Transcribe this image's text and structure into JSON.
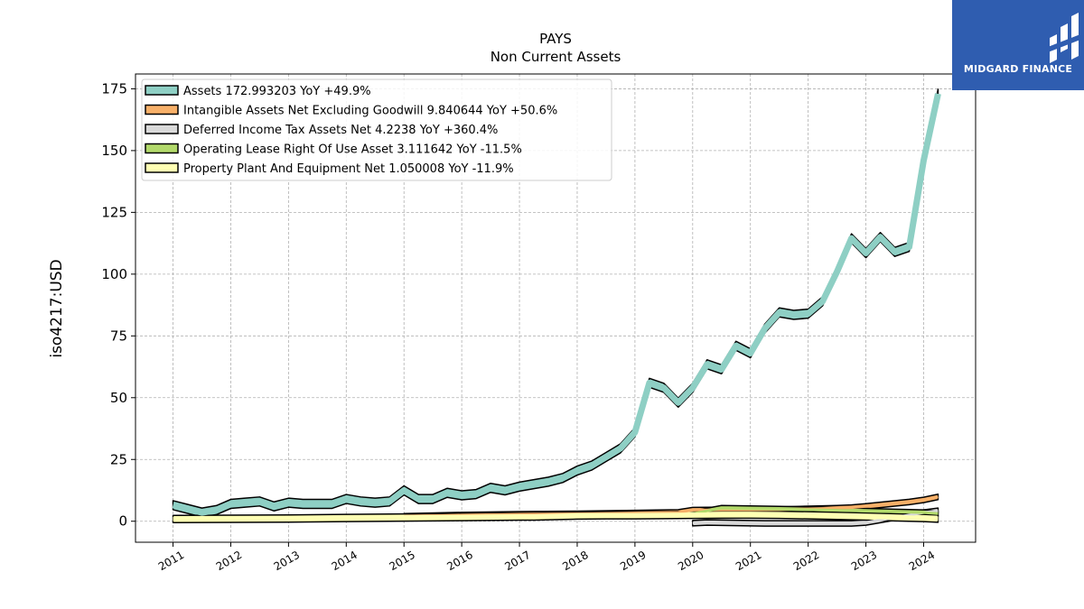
{
  "chart_data": {
    "type": "line",
    "title": "PAYS",
    "subtitle": "Non Current  Assets",
    "ylabel": "iso4217:USD",
    "xlabel": "",
    "x_ticks": [
      "2011",
      "2012",
      "2013",
      "2014",
      "2015",
      "2016",
      "2017",
      "2018",
      "2019",
      "2020",
      "2021",
      "2022",
      "2023",
      "2024"
    ],
    "y_ticks": [
      "0",
      "25",
      "50",
      "75",
      "100",
      "125",
      "150",
      "175"
    ],
    "ylim": [
      -8.5,
      181
    ],
    "xlim": [
      2010.35,
      2024.9
    ],
    "grid": true,
    "legend_position": "top-left",
    "series": [
      {
        "name": "Assets",
        "legend": "Assets  172.993203 YoY +49.9%",
        "color": "#8ecfc4",
        "x": [
          2011.0,
          2011.25,
          2011.5,
          2011.75,
          2012.0,
          2012.25,
          2012.5,
          2012.75,
          2013.0,
          2013.25,
          2013.5,
          2013.75,
          2014.0,
          2014.25,
          2014.5,
          2014.75,
          2015.0,
          2015.25,
          2015.5,
          2015.75,
          2016.0,
          2016.25,
          2016.5,
          2016.75,
          2017.0,
          2017.25,
          2017.5,
          2017.75,
          2018.0,
          2018.25,
          2018.5,
          2018.75,
          2019.0,
          2019.25,
          2019.5,
          2019.75,
          2020.0,
          2020.25,
          2020.5,
          2020.75,
          2021.0,
          2021.25,
          2021.5,
          2021.75,
          2022.0,
          2022.25,
          2022.5,
          2022.75,
          2023.0,
          2023.25,
          2023.5,
          2023.75,
          2024.0,
          2024.25
        ],
        "y": [
          6.5,
          5,
          3.5,
          4.5,
          7,
          7.5,
          8,
          6,
          7.5,
          7,
          7,
          7,
          9,
          8,
          7.5,
          8,
          12.5,
          9,
          9,
          11.5,
          10.5,
          11,
          13.5,
          12.5,
          14,
          15,
          16,
          17.5,
          20.5,
          22.5,
          26,
          29.5,
          36,
          56,
          54,
          48,
          54,
          63.5,
          61.5,
          71,
          68,
          78,
          84.5,
          83.5,
          84,
          89,
          101,
          114.5,
          108.5,
          115,
          109,
          111,
          146,
          173
        ]
      },
      {
        "name": "Intangible Assets Net Excluding Goodwill",
        "legend": "Intangible Assets Net Excluding Goodwill  9.840644 YoY +50.6%",
        "color": "#f7b069",
        "x": [
          2015.0,
          2016.0,
          2017.0,
          2018.0,
          2019.0,
          2019.75,
          2020.0,
          2020.5,
          2021.0,
          2021.5,
          2022.0,
          2022.5,
          2022.75,
          2023.0,
          2023.25,
          2023.5,
          2023.75,
          2024.0,
          2024.25
        ],
        "y": [
          2.0,
          2.5,
          2.8,
          3.0,
          3.3,
          3.6,
          4.5,
          4.6,
          4.6,
          4.7,
          5.0,
          5.3,
          5.5,
          6.0,
          6.6,
          7.2,
          7.8,
          8.6,
          9.84
        ]
      },
      {
        "name": "Deferred Income Tax Assets Net",
        "legend": "Deferred Income Tax Assets Net  4.2238 YoY +360.4%",
        "color": "#d9d9d9",
        "x": [
          2020.0,
          2020.25,
          2020.5,
          2020.75,
          2021.0,
          2021.25,
          2021.5,
          2021.75,
          2022.0,
          2022.25,
          2022.5,
          2022.75,
          2023.0,
          2023.25,
          2023.5,
          2023.75,
          2024.0,
          2024.25
        ],
        "y": [
          -0.8,
          -0.5,
          -0.6,
          -0.7,
          -0.8,
          -0.9,
          -0.9,
          -0.9,
          -0.9,
          -0.9,
          -0.9,
          -0.9,
          -0.5,
          0.5,
          1.5,
          2.5,
          3.5,
          4.22
        ]
      },
      {
        "name": "Operating Lease Right Of Use Asset",
        "legend": "Operating Lease Right Of Use Asset  3.111642 YoY -11.5%",
        "color": "#b2d96b",
        "x": [
          2020.0,
          2020.25,
          2020.5,
          2020.75,
          2021.0,
          2021.5,
          2022.0,
          2022.5,
          2023.0,
          2023.5,
          2024.0,
          2024.25
        ],
        "y": [
          3.0,
          4.2,
          5.3,
          5.2,
          5.1,
          4.9,
          4.7,
          4.4,
          4.1,
          3.8,
          3.5,
          3.11
        ]
      },
      {
        "name": "Property Plant And Equipment Net",
        "legend": "Property Plant And Equipment Net  1.050008 YoY -11.9%",
        "color": "#ffffb3",
        "x": [
          2011.0,
          2012.0,
          2013.0,
          2014.0,
          2015.0,
          2016.0,
          2017.0,
          2017.25,
          2017.75,
          2018.0,
          2018.5,
          2019.0,
          2019.5,
          2020.0,
          2020.5,
          2021.0,
          2021.5,
          2022.0,
          2022.5,
          2023.0,
          2023.5,
          2024.0,
          2024.25
        ],
        "y": [
          0.9,
          1.0,
          1.1,
          1.3,
          1.5,
          1.7,
          1.9,
          1.9,
          2.2,
          2.3,
          2.4,
          2.4,
          2.5,
          2.6,
          2.7,
          2.7,
          2.6,
          2.4,
          2.2,
          1.9,
          1.6,
          1.3,
          1.05
        ]
      }
    ]
  },
  "logo": {
    "text": "MIDGARD FINANCE"
  }
}
